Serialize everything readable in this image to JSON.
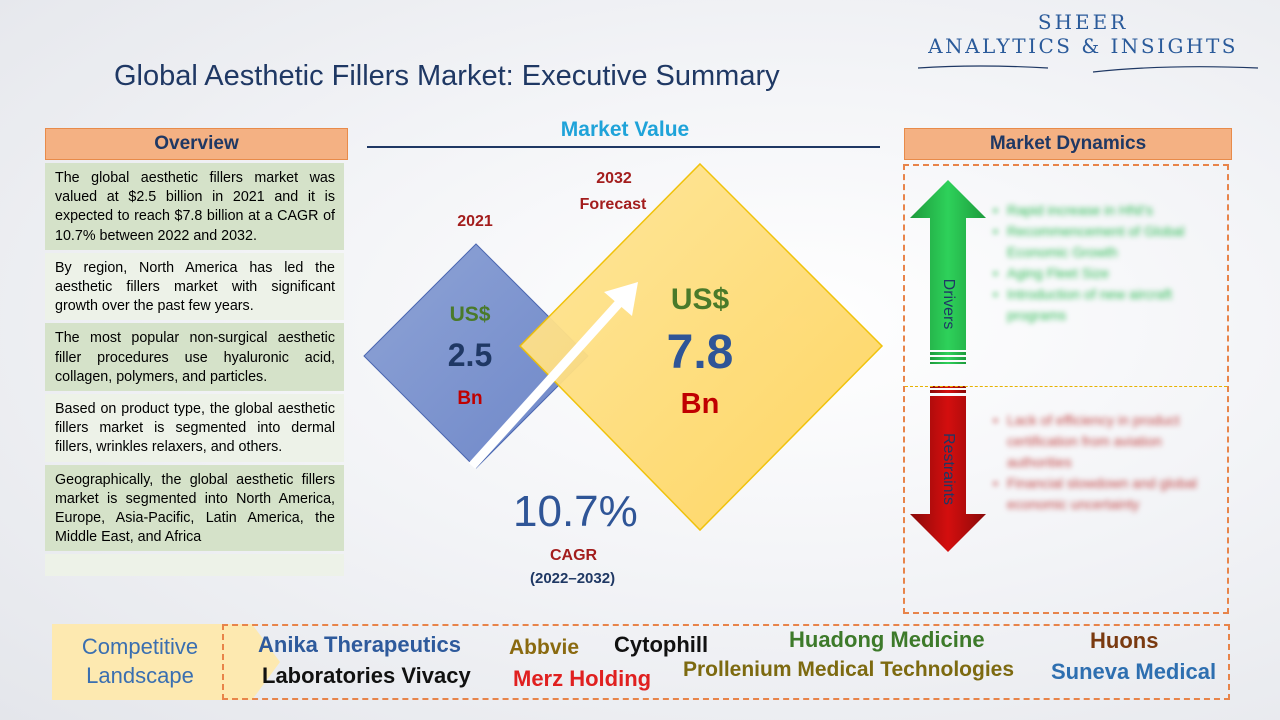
{
  "brand": {
    "line1": "SHEER",
    "line2": "ANALYTICS & INSIGHTS"
  },
  "title": "Global Aesthetic Fillers Market: Executive Summary",
  "overview": {
    "header": "Overview",
    "items": [
      "The global aesthetic fillers market was valued at $2.5 billion in 2021 and it is expected to reach $7.8 billion at a CAGR of 10.7% between 2022 and 2032.",
      "By region, North America has led the aesthetic fillers market with significant growth over the past few years.",
      "The most popular non-surgical aesthetic filler procedures use hyaluronic acid, collagen, polymers, and particles.",
      "Based on product type, the global aesthetic fillers market is segmented into dermal fillers, wrinkles relaxers, and others.",
      "Geographically, the global aesthetic fillers market is segmented into North America, Europe, Asia-Pacific, Latin America, the Middle East, and Africa"
    ]
  },
  "market_value": {
    "header": "Market Value",
    "left": {
      "year": "2021",
      "currency": "US$",
      "value": "2.5",
      "unit": "Bn"
    },
    "right": {
      "year_line1": "2032",
      "year_line2": "Forecast",
      "currency": "US$",
      "value": "7.8",
      "unit": "Bn"
    },
    "cagr": {
      "value": "10.7%",
      "label": "CAGR",
      "range": "(2022–2032)"
    }
  },
  "dynamics": {
    "header": "Market Dynamics",
    "drivers_label": "Drivers",
    "restraints_label": "Restraints",
    "drivers": [
      "Rapid increase in HNI's",
      "Recommencement of Global Economic Growth",
      "Aging Fleet Size",
      "Introduction of new aircraft programs"
    ],
    "restraints": [
      "Lack of efficiency in product certification from aviation authorities",
      "Financial slowdown and global economic uncertainty"
    ],
    "colors": {
      "driver": "#22b04a",
      "restraint": "#c00000"
    }
  },
  "landscape": {
    "label_line1": "Competitive",
    "label_line2": "Landscape",
    "companies": [
      {
        "name": "Anika Therapeutics",
        "color": "#2e5a9c"
      },
      {
        "name": "Abbvie",
        "color": "#8a6a10"
      },
      {
        "name": "Cytophill",
        "color": "#111111"
      },
      {
        "name": "Huadong Medicine",
        "color": "#3d7a2a"
      },
      {
        "name": "Huons",
        "color": "#7a3a10"
      },
      {
        "name": "Laboratories Vivacy",
        "color": "#111111"
      },
      {
        "name": "Merz Holding",
        "color": "#e02020"
      },
      {
        "name": "Prollenium Medical Technologies",
        "color": "#7d6a10"
      },
      {
        "name": "Suneva Medical",
        "color": "#2e6fb0"
      }
    ]
  }
}
